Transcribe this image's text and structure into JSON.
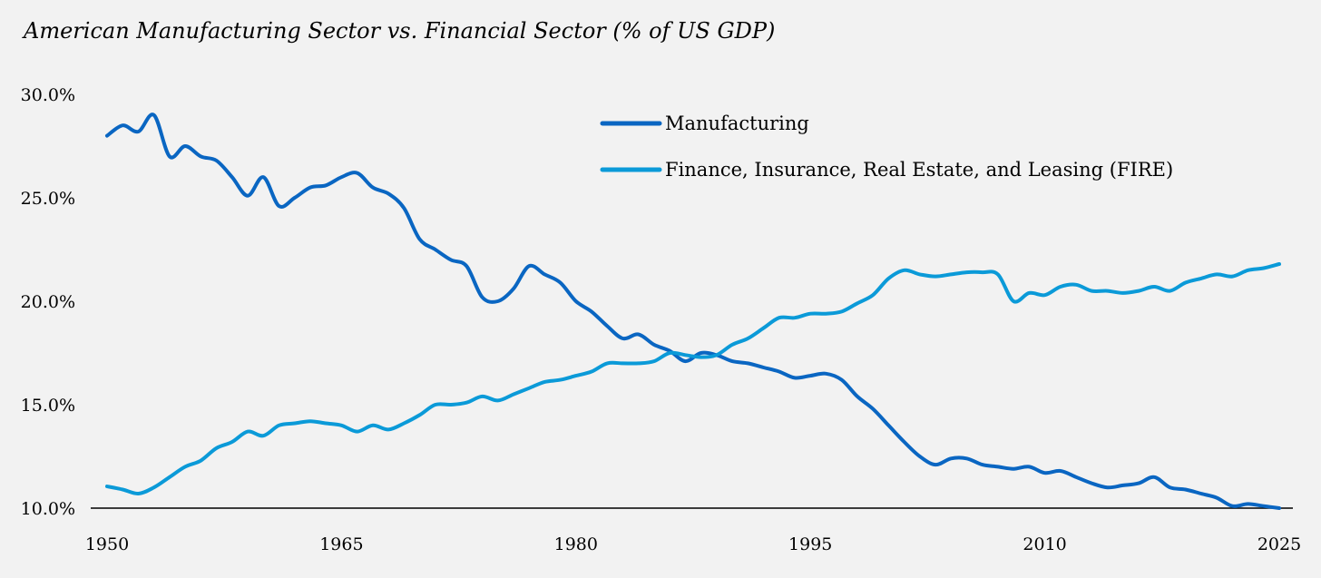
{
  "chart_data": {
    "type": "line",
    "title": "American Manufacturing Sector vs. Financial Sector (% of US GDP)",
    "xlabel": "",
    "ylabel": "",
    "xlim": [
      1950,
      2025
    ],
    "ylim": [
      10,
      30
    ],
    "x_ticks": [
      1950,
      1965,
      1980,
      1995,
      2010,
      2025
    ],
    "x_tick_labels": [
      "1950",
      "1965",
      "1980",
      "1995",
      "2010",
      "2025"
    ],
    "y_ticks": [
      10,
      15,
      20,
      25,
      30
    ],
    "y_tick_labels": [
      "10.0%",
      "15.0%",
      "20.0%",
      "25.0%",
      "30.0%"
    ],
    "grid": false,
    "legend_position": "top-center",
    "x_start": 1950,
    "series": [
      {
        "name": "Manufacturing",
        "color": "#0a66c2",
        "values": [
          28.0,
          28.5,
          28.2,
          29.0,
          27.0,
          27.5,
          27.0,
          26.8,
          26.0,
          25.1,
          26.0,
          24.6,
          25.0,
          25.5,
          25.6,
          26.0,
          26.2,
          25.5,
          25.2,
          24.5,
          23.0,
          22.5,
          22.0,
          21.7,
          20.2,
          20.0,
          20.6,
          21.7,
          21.3,
          20.9,
          20.0,
          19.5,
          18.8,
          18.2,
          18.4,
          17.9,
          17.6,
          17.1,
          17.5,
          17.4,
          17.1,
          17.0,
          16.8,
          16.6,
          16.3,
          16.4,
          16.5,
          16.2,
          15.4,
          14.8,
          14.0,
          13.2,
          12.5,
          12.1,
          12.4,
          12.4,
          12.1,
          12.0,
          11.9,
          12.0,
          11.7,
          11.8,
          11.5,
          11.2,
          11.0,
          11.1,
          11.2,
          11.5,
          11.0,
          10.9,
          10.7,
          10.5,
          10.1,
          10.2,
          10.1,
          10.0
        ]
      },
      {
        "name": "Finance, Insurance, Real Estate, and Leasing (FIRE)",
        "color": "#0b9ad8",
        "values": [
          11.05,
          10.9,
          10.7,
          11.0,
          11.5,
          12.0,
          12.3,
          12.9,
          13.2,
          13.7,
          13.5,
          14.0,
          14.1,
          14.2,
          14.1,
          14.0,
          13.7,
          14.0,
          13.8,
          14.1,
          14.5,
          15.0,
          15.0,
          15.1,
          15.4,
          15.2,
          15.5,
          15.8,
          16.1,
          16.2,
          16.4,
          16.6,
          17.0,
          17.0,
          17.0,
          17.1,
          17.5,
          17.4,
          17.3,
          17.4,
          17.9,
          18.2,
          18.7,
          19.2,
          19.2,
          19.4,
          19.4,
          19.5,
          19.9,
          20.3,
          21.1,
          21.5,
          21.3,
          21.2,
          21.3,
          21.4,
          21.4,
          21.3,
          20.0,
          20.4,
          20.3,
          20.7,
          20.8,
          20.5,
          20.5,
          20.4,
          20.5,
          20.7,
          20.5,
          20.9,
          21.1,
          21.3,
          21.2,
          21.5,
          21.6,
          21.8
        ]
      }
    ]
  }
}
